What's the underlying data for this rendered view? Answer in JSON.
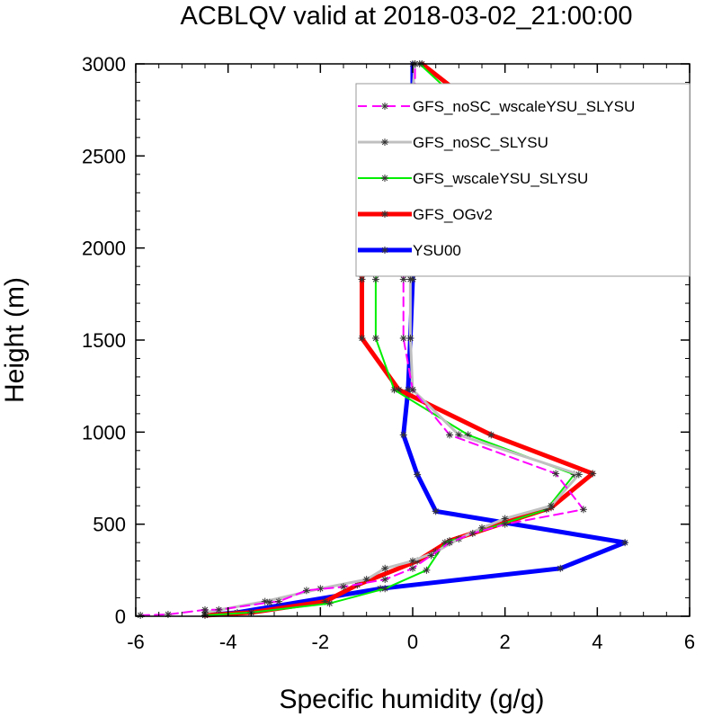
{
  "chart_data": {
    "type": "line",
    "title": "ACBLQV valid at 2018-03-02_21:00:00",
    "xlabel": "Specific humidity (g/g)",
    "ylabel": "Height (m)",
    "xlim": [
      -6,
      6
    ],
    "ylim": [
      0,
      3000
    ],
    "xticks": [
      -6,
      -4,
      -2,
      0,
      2,
      4,
      6
    ],
    "yticks": [
      0,
      500,
      1000,
      1500,
      2000,
      2500,
      3000
    ],
    "xtick_labels": [
      "-6",
      "-4",
      "-2",
      "0",
      "2",
      "4",
      "6"
    ],
    "ytick_labels": [
      "0",
      "500",
      "1000",
      "1500",
      "2000",
      "2500",
      "3000"
    ],
    "grid": false,
    "legend_position": "top-right",
    "series": [
      {
        "name": "GFS_noSC_wscaleYSU_SLYSU",
        "color": "#ff00ff",
        "dash": "dashed",
        "width": 2,
        "x": [
          -5.9,
          -5.3,
          -4.5,
          -4.2,
          -3.1,
          -2.9,
          -2.3,
          -1.5,
          -0.6,
          0.0,
          0.4,
          0.8,
          1.3,
          2.0,
          3.7,
          3.1,
          0.8,
          0.0,
          -0.2,
          -0.2,
          -0.2,
          -0.1,
          0.0,
          0.0,
          0.05,
          0.05
        ],
        "y": [
          5,
          10,
          35,
          35,
          75,
          80,
          140,
          160,
          200,
          260,
          330,
          400,
          450,
          500,
          580,
          775,
          985,
          1230,
          1510,
          1830,
          2180,
          2240,
          2280,
          2520,
          2850,
          3000
        ]
      },
      {
        "name": "GFS_noSC_SLYSU",
        "color": "#c0c0c0",
        "dash": "solid",
        "width": 3,
        "x": [
          -4.5,
          -3.2,
          -2.0,
          -1.0,
          -0.6,
          0.0,
          0.5,
          1.0,
          1.5,
          2.0,
          3.0,
          3.6,
          1.0,
          0.0,
          -0.05,
          -0.05,
          -0.05,
          0.0,
          0.0,
          0.0,
          0.05
        ],
        "y": [
          20,
          80,
          150,
          200,
          260,
          300,
          350,
          420,
          480,
          530,
          600,
          770,
          985,
          1230,
          1510,
          1830,
          2180,
          2280,
          2520,
          2850,
          3000
        ]
      },
      {
        "name": "GFS_wscaleYSU_SLYSU",
        "color": "#00ee00",
        "dash": "solid",
        "width": 2,
        "x": [
          -4.5,
          -3.5,
          -1.8,
          -0.6,
          0.3,
          0.7,
          2.9,
          3.5,
          1.2,
          -0.4,
          -0.8,
          -0.8,
          -0.6,
          -0.3,
          1.2,
          2.0,
          0.15
        ],
        "y": [
          5,
          20,
          70,
          150,
          250,
          400,
          580,
          770,
          985,
          1230,
          1510,
          1830,
          2180,
          2280,
          2600,
          2570,
          3000
        ]
      },
      {
        "name": "GFS_OGv2",
        "color": "#ff0000",
        "dash": "solid",
        "width": 5,
        "x": [
          -4.5,
          -3.5,
          -1.9,
          -1.2,
          0.1,
          0.8,
          3.0,
          3.9,
          1.7,
          -0.3,
          -1.1,
          -1.1,
          -1.1,
          -0.8,
          0.0,
          2.5,
          0.2
        ],
        "y": [
          5,
          20,
          80,
          170,
          300,
          410,
          590,
          775,
          985,
          1230,
          1510,
          1830,
          2050,
          2180,
          2280,
          2550,
          3000
        ]
      },
      {
        "name": "YSU00",
        "color": "#0000ff",
        "dash": "solid",
        "width": 5,
        "x": [
          -4.5,
          -3.8,
          -0.7,
          3.2,
          4.6,
          0.5,
          0.1,
          -0.2,
          -0.1,
          -0.05,
          0.0,
          0.0,
          0.0,
          0.0
        ],
        "y": [
          5,
          20,
          150,
          260,
          400,
          570,
          770,
          985,
          1230,
          1510,
          1830,
          2180,
          2500,
          3000
        ]
      }
    ]
  }
}
